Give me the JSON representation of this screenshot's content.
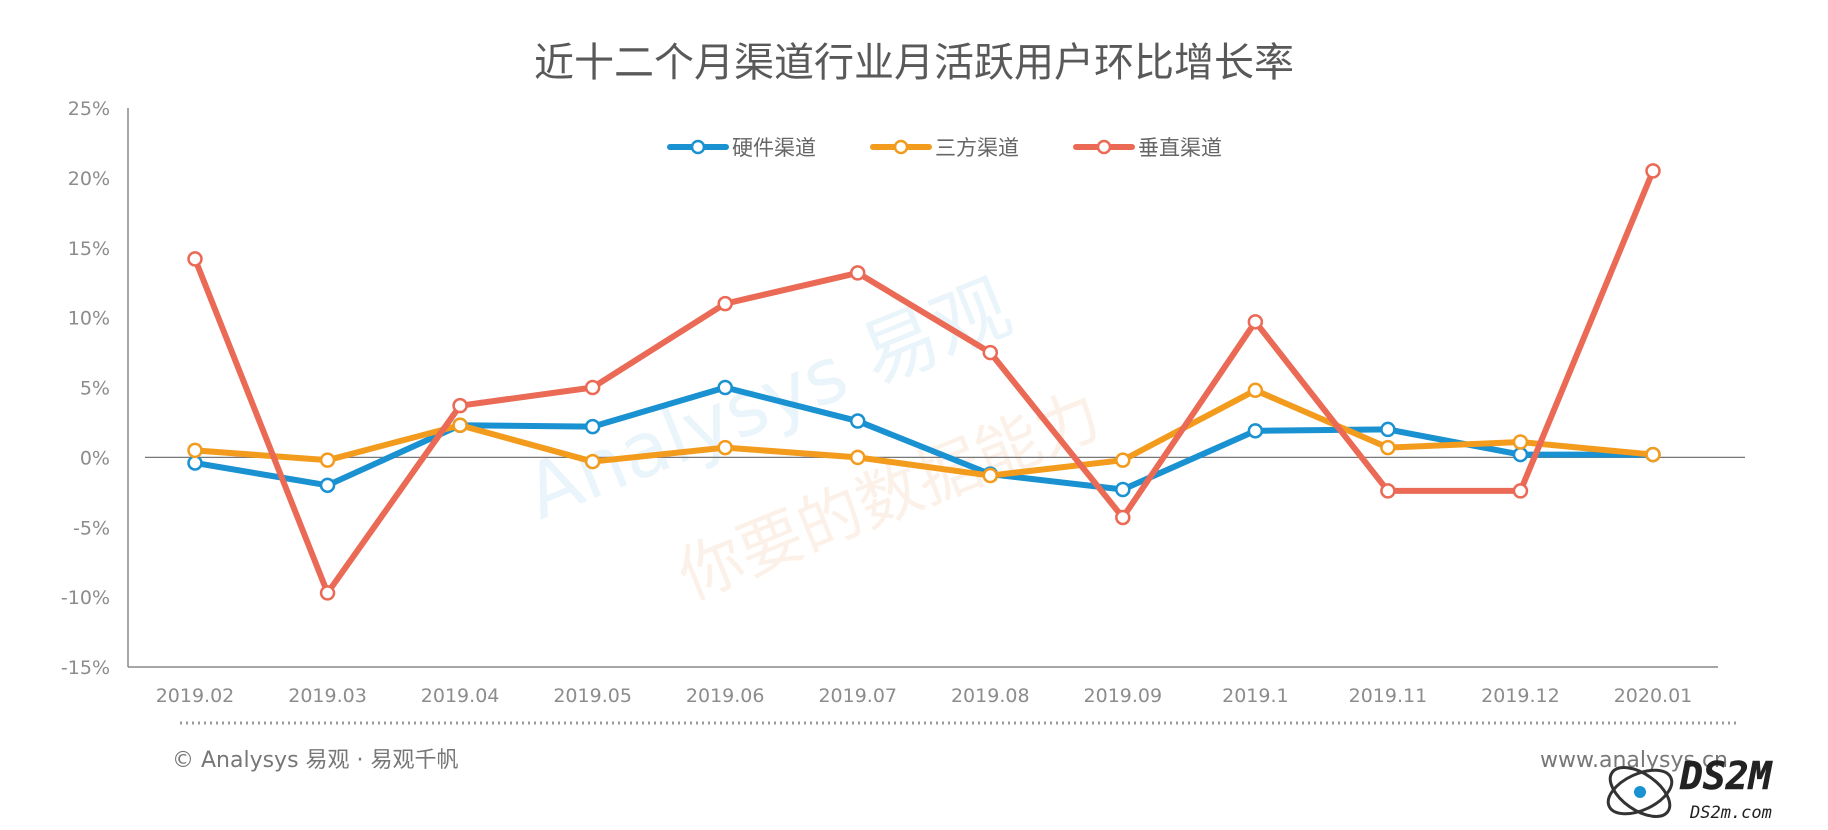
{
  "chart_data": {
    "type": "line",
    "title": "近十二个月渠道行业月活跃用户环比增长率",
    "categories": [
      "2019.02",
      "2019.03",
      "2019.04",
      "2019.05",
      "2019.06",
      "2019.07",
      "2019.08",
      "2019.09",
      "2019.1",
      "2019.11",
      "2019.12",
      "2020.01"
    ],
    "ylim": [
      -15,
      25
    ],
    "yticks": [
      25,
      20,
      15,
      10,
      5,
      0,
      -5,
      -10,
      -15
    ],
    "ytick_labels": [
      "25%",
      "20%",
      "15%",
      "10%",
      "5%",
      "0%",
      "-5%",
      "-10%",
      "-15%"
    ],
    "grid": false,
    "legend_position": "top-center",
    "series": [
      {
        "name": "硬件渠道",
        "color": "#1a91d1",
        "values": [
          -0.4,
          -2.0,
          2.3,
          2.2,
          5.0,
          2.6,
          -1.2,
          -2.3,
          1.9,
          2.0,
          0.2,
          0.2
        ]
      },
      {
        "name": "三方渠道",
        "color": "#f29b1d",
        "values": [
          0.5,
          -0.2,
          2.3,
          -0.3,
          0.7,
          0.0,
          -1.3,
          -0.2,
          4.8,
          0.7,
          1.1,
          0.2
        ]
      },
      {
        "name": "垂直渠道",
        "color": "#ea6a55",
        "values": [
          14.2,
          -9.7,
          3.7,
          5.0,
          11.0,
          13.2,
          7.5,
          -4.3,
          9.7,
          -2.4,
          -2.4,
          20.5
        ]
      }
    ]
  },
  "footer": {
    "copyright": "© Analysys 易观 · 易观千帆",
    "url": "www.analysys.cn"
  },
  "watermark": {
    "brand": "Analysys 易观",
    "slogan": "你要的数据能力",
    "site_logo": "DS2M",
    "site_url": "DS2m.com"
  }
}
